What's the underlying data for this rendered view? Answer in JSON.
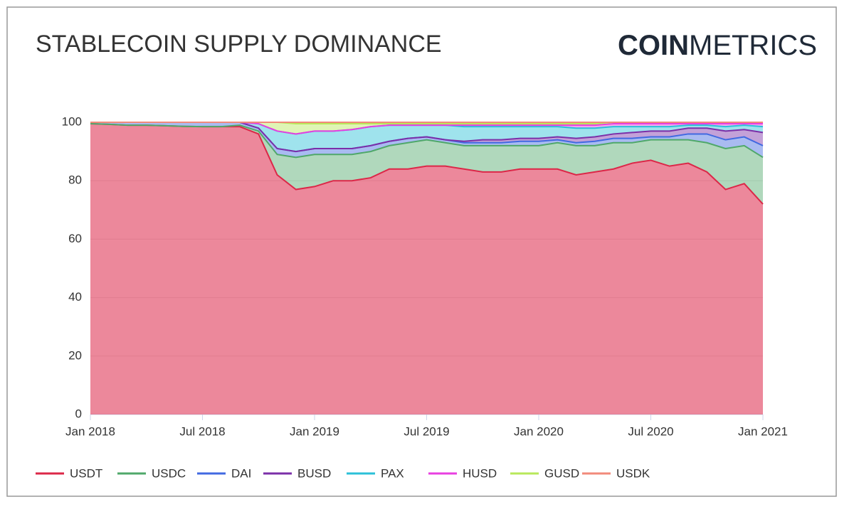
{
  "chart_data": {
    "type": "stacked_area",
    "title": "STABLECOIN SUPPLY DOMINANCE",
    "brand": {
      "bold": "COIN",
      "light": "METRICS"
    },
    "x": [
      "2018-01",
      "2018-02",
      "2018-03",
      "2018-04",
      "2018-05",
      "2018-06",
      "2018-07",
      "2018-08",
      "2018-09",
      "2018-10",
      "2018-11",
      "2018-12",
      "2019-01",
      "2019-02",
      "2019-03",
      "2019-04",
      "2019-05",
      "2019-06",
      "2019-07",
      "2019-08",
      "2019-09",
      "2019-10",
      "2019-11",
      "2019-12",
      "2020-01",
      "2020-02",
      "2020-03",
      "2020-04",
      "2020-05",
      "2020-06",
      "2020-07",
      "2020-08",
      "2020-09",
      "2020-10",
      "2020-11",
      "2020-12",
      "2021-01"
    ],
    "xlim": [
      "2018-01",
      "2021-01"
    ],
    "xticks": [
      {
        "value": "2018-01",
        "label": "Jan 2018"
      },
      {
        "value": "2018-07",
        "label": "Jul 2018"
      },
      {
        "value": "2019-01",
        "label": "Jan 2019"
      },
      {
        "value": "2019-07",
        "label": "Jul 2019"
      },
      {
        "value": "2020-01",
        "label": "Jan 2020"
      },
      {
        "value": "2020-07",
        "label": "Jul 2020"
      },
      {
        "value": "2021-01",
        "label": "Jan 2021"
      }
    ],
    "ylim": [
      0,
      100
    ],
    "yticks": [
      0,
      20,
      40,
      60,
      80,
      100
    ],
    "grid": true,
    "legend": "bottom",
    "series": [
      {
        "name": "USDT",
        "color": "#dc2748",
        "values": [
          99.5,
          99.3,
          99,
          99,
          98.8,
          98.6,
          98.5,
          98.5,
          98.5,
          96,
          82,
          77,
          78,
          80,
          80,
          81,
          84,
          84,
          85,
          85,
          84,
          83,
          83,
          84,
          84,
          84,
          82,
          83,
          84,
          86,
          87,
          85,
          86,
          83,
          77,
          79,
          72
        ]
      },
      {
        "name": "USDC",
        "color": "#4fa86a",
        "values": [
          0,
          0,
          0,
          0,
          0,
          0,
          0,
          0,
          0.5,
          1,
          7,
          11,
          11,
          9,
          9,
          9,
          8,
          9,
          9,
          8,
          8,
          9,
          9,
          8,
          8,
          9,
          10,
          9,
          9,
          7,
          7,
          9,
          8,
          10,
          14,
          13,
          16
        ]
      },
      {
        "name": "DAI",
        "color": "#4169e1",
        "values": [
          0.5,
          0.7,
          1,
          1,
          1.2,
          1.4,
          1.5,
          1.5,
          1,
          1,
          2,
          2,
          2,
          2,
          2,
          2,
          1.5,
          1.5,
          1,
          1,
          1,
          1,
          1,
          1.5,
          1.5,
          1,
          1,
          1.5,
          1.5,
          1.5,
          1,
          1,
          2,
          3,
          3,
          3,
          4
        ]
      },
      {
        "name": "BUSD",
        "color": "#7b2fa8",
        "values": [
          0,
          0,
          0,
          0,
          0,
          0,
          0,
          0,
          0,
          0,
          0,
          0,
          0,
          0,
          0,
          0,
          0,
          0,
          0,
          0,
          0.5,
          1,
          1,
          1,
          1,
          1,
          1.5,
          1.5,
          1.5,
          2,
          2,
          2,
          2,
          2,
          3,
          2.5,
          4.5
        ]
      },
      {
        "name": "PAX",
        "color": "#2bc0d8",
        "values": [
          0,
          0,
          0,
          0,
          0,
          0,
          0,
          0,
          0,
          1.5,
          6,
          6,
          6,
          6,
          6.5,
          6.5,
          5.5,
          4.5,
          4,
          5,
          5,
          4.5,
          4.5,
          4,
          4,
          3.5,
          3.5,
          3,
          2.5,
          2,
          1.5,
          1.5,
          1,
          1,
          1.5,
          1.5,
          2
        ]
      },
      {
        "name": "HUSD",
        "color": "#e83fe0",
        "values": [
          0,
          0,
          0,
          0,
          0,
          0,
          0,
          0,
          0,
          0,
          0,
          0,
          0,
          0,
          0,
          0,
          0,
          0,
          0,
          0,
          0.5,
          0.5,
          0.5,
          0.5,
          0.5,
          0.5,
          1,
          1,
          1,
          1,
          1,
          1,
          0.5,
          0.5,
          1,
          0.5,
          1
        ]
      },
      {
        "name": "GUSD",
        "color": "#b8e85a",
        "values": [
          0,
          0,
          0,
          0,
          0,
          0,
          0,
          0,
          0,
          0.5,
          3,
          3.5,
          2.5,
          2.5,
          2,
          1,
          0.5,
          0.5,
          0.5,
          0.5,
          0.5,
          0.5,
          0.5,
          0.5,
          0.5,
          0.5,
          0.5,
          0.5,
          0.5,
          0.5,
          0.5,
          0.5,
          0.5,
          0.5,
          0.5,
          0.5,
          0.5
        ]
      },
      {
        "name": "USDK",
        "color": "#f28a7a",
        "values": [
          0,
          0,
          0,
          0,
          0,
          0,
          0,
          0,
          0,
          0,
          0,
          0.5,
          0.5,
          0.5,
          0.5,
          0.5,
          0.5,
          0.5,
          0.5,
          0.5,
          0.5,
          0.5,
          0.5,
          0.5,
          0.5,
          0.5,
          0.5,
          0.5,
          0,
          0,
          0,
          0,
          0,
          0,
          0,
          0,
          0
        ]
      }
    ]
  }
}
